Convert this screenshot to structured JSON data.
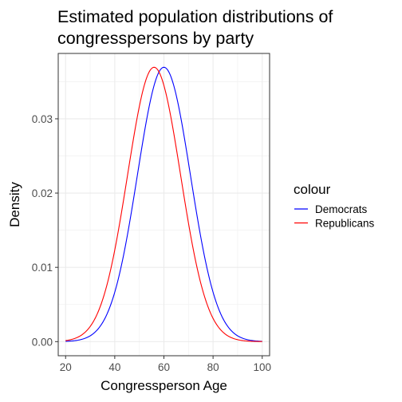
{
  "chart_data": {
    "type": "line",
    "title_lines": [
      "Estimated population distributions of",
      "congresspersons by party"
    ],
    "xlabel": "Congressperson Age",
    "ylabel": "Density",
    "xlim": [
      17,
      103
    ],
    "ylim": [
      -0.0019,
      0.0388
    ],
    "x_ticks": [
      20,
      40,
      60,
      80,
      100
    ],
    "x_tick_labels": [
      "20",
      "40",
      "60",
      "80",
      "100"
    ],
    "y_ticks": [
      0.0,
      0.01,
      0.02,
      0.03
    ],
    "y_tick_labels": [
      "0.00",
      "0.01",
      "0.02",
      "0.03"
    ],
    "grid": true,
    "legend": {
      "title": "colour",
      "placement": "right"
    },
    "series": [
      {
        "name": "Democrats",
        "color": "#0000ff",
        "distribution": {
          "kind": "normal",
          "mean": 60,
          "sd": 10.8
        },
        "x_range": [
          20,
          100
        ]
      },
      {
        "name": "Republicans",
        "color": "#ff0000",
        "distribution": {
          "kind": "normal",
          "mean": 56,
          "sd": 10.8
        },
        "x_range": [
          20,
          100
        ]
      }
    ]
  }
}
